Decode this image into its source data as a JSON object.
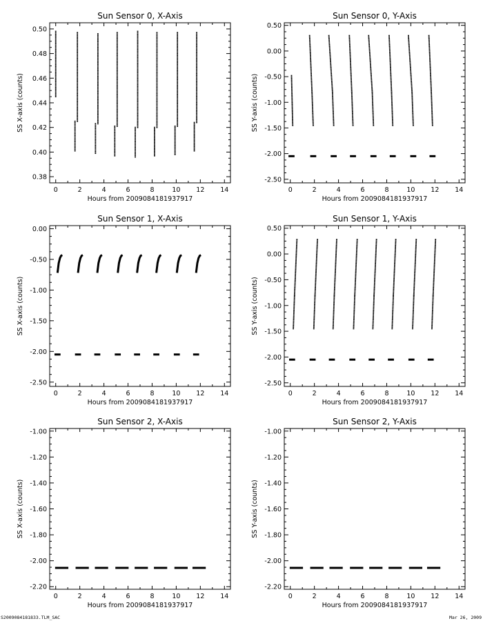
{
  "footer": {
    "left": "S2009084181833.TLM_SAC",
    "right": "Mar 26, 2009"
  },
  "chart_data": [
    {
      "type": "scatter",
      "title": "Sun Sensor 0, X-Axis",
      "xlabel": "Hours from 2009084181937917",
      "ylabel": "SS X-axis (counts)",
      "xlim": [
        -0.5,
        14.5
      ],
      "ylim": [
        0.375,
        0.505
      ],
      "xticks": [
        0,
        2,
        4,
        6,
        8,
        10,
        12,
        14
      ],
      "yticks": [
        0.38,
        0.4,
        0.42,
        0.44,
        0.46,
        0.48,
        0.5
      ],
      "ytick_labels": [
        "0.38",
        "0.40",
        "0.42",
        "0.44",
        "0.46",
        "0.48",
        "0.50"
      ],
      "series": [
        {
          "segments": [
            {
              "x": [
                0.0,
                0.0
              ],
              "y": [
                0.445,
                0.498
              ]
            },
            {
              "x": [
                1.6,
                1.6
              ],
              "y": [
                0.401,
                0.425
              ]
            },
            {
              "x": [
                1.8,
                1.8
              ],
              "y": [
                0.425,
                0.497
              ]
            },
            {
              "x": [
                3.3,
                3.3
              ],
              "y": [
                0.399,
                0.423
              ]
            },
            {
              "x": [
                3.5,
                3.5
              ],
              "y": [
                0.423,
                0.496
              ]
            },
            {
              "x": [
                4.9,
                4.9
              ],
              "y": [
                0.397,
                0.421
              ]
            },
            {
              "x": [
                5.1,
                5.1
              ],
              "y": [
                0.421,
                0.497
              ]
            },
            {
              "x": [
                6.6,
                6.6
              ],
              "y": [
                0.396,
                0.42
              ]
            },
            {
              "x": [
                6.8,
                6.8
              ],
              "y": [
                0.42,
                0.498
              ]
            },
            {
              "x": [
                8.2,
                8.2
              ],
              "y": [
                0.397,
                0.42
              ]
            },
            {
              "x": [
                8.4,
                8.4
              ],
              "y": [
                0.42,
                0.497
              ]
            },
            {
              "x": [
                9.9,
                9.9
              ],
              "y": [
                0.398,
                0.421
              ]
            },
            {
              "x": [
                10.1,
                10.1
              ],
              "y": [
                0.421,
                0.497
              ]
            },
            {
              "x": [
                11.5,
                11.5
              ],
              "y": [
                0.401,
                0.424
              ]
            },
            {
              "x": [
                11.7,
                11.7
              ],
              "y": [
                0.424,
                0.497
              ]
            }
          ]
        }
      ]
    },
    {
      "type": "scatter",
      "title": "Sun Sensor 0, Y-Axis",
      "xlabel": "Hours from 2009084181937917",
      "ylabel": "SS Y-axis (counts)",
      "xlim": [
        -0.5,
        14.5
      ],
      "ylim": [
        -2.57,
        0.55
      ],
      "xticks": [
        0,
        2,
        4,
        6,
        8,
        10,
        12,
        14
      ],
      "yticks": [
        -2.5,
        -2.0,
        -1.5,
        -1.0,
        -0.5,
        0.0,
        0.5
      ],
      "ytick_labels": [
        "-2.50",
        "-2.00",
        "-1.50",
        "-1.00",
        "-0.50",
        "0.00",
        "0.50"
      ],
      "series": [
        {
          "segments": [
            {
              "x": [
                0.1,
                0.2
              ],
              "y": [
                -0.48,
                -1.45
              ]
            },
            {
              "x": [
                1.6,
                1.8
              ],
              "y": [
                0.3,
                -0.8
              ]
            },
            {
              "x": [
                1.8,
                1.9
              ],
              "y": [
                -0.8,
                -1.45
              ]
            },
            {
              "x": [
                3.2,
                3.5
              ],
              "y": [
                0.3,
                -0.8
              ]
            },
            {
              "x": [
                3.5,
                3.6
              ],
              "y": [
                -0.8,
                -1.45
              ]
            },
            {
              "x": [
                4.9,
                5.1
              ],
              "y": [
                0.3,
                -0.8
              ]
            },
            {
              "x": [
                5.1,
                5.2
              ],
              "y": [
                -0.8,
                -1.45
              ]
            },
            {
              "x": [
                6.5,
                6.8
              ],
              "y": [
                0.3,
                -0.8
              ]
            },
            {
              "x": [
                6.8,
                6.9
              ],
              "y": [
                -0.8,
                -1.45
              ]
            },
            {
              "x": [
                8.2,
                8.4
              ],
              "y": [
                0.3,
                -0.8
              ]
            },
            {
              "x": [
                8.4,
                8.5
              ],
              "y": [
                -0.8,
                -1.45
              ]
            },
            {
              "x": [
                9.8,
                10.1
              ],
              "y": [
                0.3,
                -0.8
              ]
            },
            {
              "x": [
                10.1,
                10.2
              ],
              "y": [
                -0.8,
                -1.45
              ]
            },
            {
              "x": [
                11.5,
                11.7
              ],
              "y": [
                0.3,
                -0.8
              ]
            },
            {
              "x": [
                11.7,
                11.8
              ],
              "y": [
                -0.8,
                -1.45
              ]
            }
          ]
        },
        {
          "dashes": {
            "y": -2.05,
            "x": [
              0.1,
              1.9,
              3.6,
              5.2,
              6.9,
              8.5,
              10.2,
              11.8
            ],
            "half_width": 0.25
          }
        }
      ]
    },
    {
      "type": "scatter",
      "title": "Sun Sensor 1, X-Axis",
      "xlabel": "Hours from 2009084181937917",
      "ylabel": "SS X-axis (counts)",
      "xlim": [
        -0.5,
        14.5
      ],
      "ylim": [
        -2.57,
        0.05
      ],
      "xticks": [
        0,
        2,
        4,
        6,
        8,
        10,
        12,
        14
      ],
      "yticks": [
        -2.5,
        -2.0,
        -1.5,
        -1.0,
        -0.5,
        0.0
      ],
      "ytick_labels": [
        "-2.50",
        "-2.00",
        "-1.50",
        "-1.00",
        "-0.50",
        "0.00"
      ],
      "series": [
        {
          "curves": [
            {
              "x": [
                0.15,
                0.25,
                0.35,
                0.45,
                0.55
              ],
              "y": [
                -0.72,
                -0.56,
                -0.48,
                -0.44,
                -0.43
              ]
            },
            {
              "x": [
                1.85,
                1.95,
                2.05,
                2.15,
                2.25
              ],
              "y": [
                -0.72,
                -0.56,
                -0.48,
                -0.44,
                -0.43
              ]
            },
            {
              "x": [
                3.45,
                3.55,
                3.65,
                3.75,
                3.85
              ],
              "y": [
                -0.72,
                -0.56,
                -0.48,
                -0.44,
                -0.43
              ]
            },
            {
              "x": [
                5.15,
                5.25,
                5.35,
                5.45,
                5.55
              ],
              "y": [
                -0.72,
                -0.56,
                -0.48,
                -0.44,
                -0.43
              ]
            },
            {
              "x": [
                6.75,
                6.85,
                6.95,
                7.05,
                7.15
              ],
              "y": [
                -0.72,
                -0.56,
                -0.48,
                -0.44,
                -0.43
              ]
            },
            {
              "x": [
                8.35,
                8.45,
                8.55,
                8.65,
                8.75
              ],
              "y": [
                -0.72,
                -0.56,
                -0.48,
                -0.44,
                -0.43
              ]
            },
            {
              "x": [
                10.05,
                10.15,
                10.25,
                10.35,
                10.45
              ],
              "y": [
                -0.72,
                -0.56,
                -0.48,
                -0.44,
                -0.43
              ]
            },
            {
              "x": [
                11.65,
                11.75,
                11.85,
                11.95,
                12.05
              ],
              "y": [
                -0.72,
                -0.56,
                -0.48,
                -0.44,
                -0.43
              ]
            }
          ]
        },
        {
          "dashes": {
            "y": -2.05,
            "x": [
              0.15,
              1.85,
              3.45,
              5.15,
              6.75,
              8.35,
              10.05,
              11.65
            ],
            "half_width": 0.25
          }
        }
      ]
    },
    {
      "type": "scatter",
      "title": "Sun Sensor 1, Y-Axis",
      "xlabel": "Hours from 2009084181937917",
      "ylabel": "SS Y-axis (counts)",
      "xlim": [
        -0.5,
        14.5
      ],
      "ylim": [
        -2.57,
        0.55
      ],
      "xticks": [
        0,
        2,
        4,
        6,
        8,
        10,
        12,
        14
      ],
      "yticks": [
        -2.5,
        -2.0,
        -1.5,
        -1.0,
        -0.5,
        0.0,
        0.5
      ],
      "ytick_labels": [
        "-2.50",
        "-2.00",
        "-1.50",
        "-1.00",
        "-0.50",
        "0.00",
        "0.50"
      ],
      "series": [
        {
          "segments": [
            {
              "x": [
                0.55,
                0.35
              ],
              "y": [
                0.28,
                -0.8
              ]
            },
            {
              "x": [
                0.35,
                0.25
              ],
              "y": [
                -0.8,
                -1.45
              ]
            },
            {
              "x": [
                2.25,
                2.05
              ],
              "y": [
                0.28,
                -0.8
              ]
            },
            {
              "x": [
                2.05,
                1.95
              ],
              "y": [
                -0.8,
                -1.45
              ]
            },
            {
              "x": [
                3.85,
                3.65
              ],
              "y": [
                0.28,
                -0.8
              ]
            },
            {
              "x": [
                3.65,
                3.55
              ],
              "y": [
                -0.8,
                -1.45
              ]
            },
            {
              "x": [
                5.55,
                5.35
              ],
              "y": [
                0.28,
                -0.8
              ]
            },
            {
              "x": [
                5.35,
                5.25
              ],
              "y": [
                -0.8,
                -1.45
              ]
            },
            {
              "x": [
                7.15,
                6.95
              ],
              "y": [
                0.28,
                -0.8
              ]
            },
            {
              "x": [
                6.95,
                6.85
              ],
              "y": [
                -0.8,
                -1.45
              ]
            },
            {
              "x": [
                8.75,
                8.55
              ],
              "y": [
                0.28,
                -0.8
              ]
            },
            {
              "x": [
                8.55,
                8.45
              ],
              "y": [
                -0.8,
                -1.45
              ]
            },
            {
              "x": [
                10.45,
                10.25
              ],
              "y": [
                0.28,
                -0.8
              ]
            },
            {
              "x": [
                10.25,
                10.15
              ],
              "y": [
                -0.8,
                -1.45
              ]
            },
            {
              "x": [
                12.05,
                11.85
              ],
              "y": [
                0.28,
                -0.8
              ]
            },
            {
              "x": [
                11.85,
                11.75
              ],
              "y": [
                -0.8,
                -1.45
              ]
            }
          ]
        },
        {
          "dashes": {
            "y": -2.05,
            "x": [
              0.15,
              1.85,
              3.45,
              5.15,
              6.75,
              8.35,
              10.05,
              11.65
            ],
            "half_width": 0.25
          }
        }
      ]
    },
    {
      "type": "scatter",
      "title": "Sun Sensor 2, X-Axis",
      "xlabel": "Hours from 2009084181937917",
      "ylabel": "SS X-axis (counts)",
      "xlim": [
        -0.5,
        14.5
      ],
      "ylim": [
        -2.22,
        -0.98
      ],
      "xticks": [
        0,
        2,
        4,
        6,
        8,
        10,
        12,
        14
      ],
      "yticks": [
        -2.2,
        -2.0,
        -1.8,
        -1.6,
        -1.4,
        -1.2,
        -1.0
      ],
      "ytick_labels": [
        "-2.20",
        "-2.00",
        "-1.80",
        "-1.60",
        "-1.40",
        "-1.20",
        "-1.00"
      ],
      "series": [
        {
          "dashes": {
            "y": -2.055,
            "x": [
              0.5,
              2.2,
              3.8,
              5.5,
              7.1,
              8.7,
              10.4,
              11.9
            ],
            "half_width": 0.55
          }
        }
      ]
    },
    {
      "type": "scatter",
      "title": "Sun Sensor 2, Y-Axis",
      "xlabel": "Hours from 2009084181937917",
      "ylabel": "SS Y-axis (counts)",
      "xlim": [
        -0.5,
        14.5
      ],
      "ylim": [
        -2.22,
        -0.98
      ],
      "xticks": [
        0,
        2,
        4,
        6,
        8,
        10,
        12,
        14
      ],
      "yticks": [
        -2.2,
        -2.0,
        -1.8,
        -1.6,
        -1.4,
        -1.2,
        -1.0
      ],
      "ytick_labels": [
        "-2.20",
        "-2.00",
        "-1.80",
        "-1.60",
        "-1.40",
        "-1.20",
        "-1.00"
      ],
      "series": [
        {
          "dashes": {
            "y": -2.055,
            "x": [
              0.5,
              2.2,
              3.8,
              5.5,
              7.1,
              8.7,
              10.4,
              11.9
            ],
            "half_width": 0.55
          }
        }
      ]
    }
  ]
}
